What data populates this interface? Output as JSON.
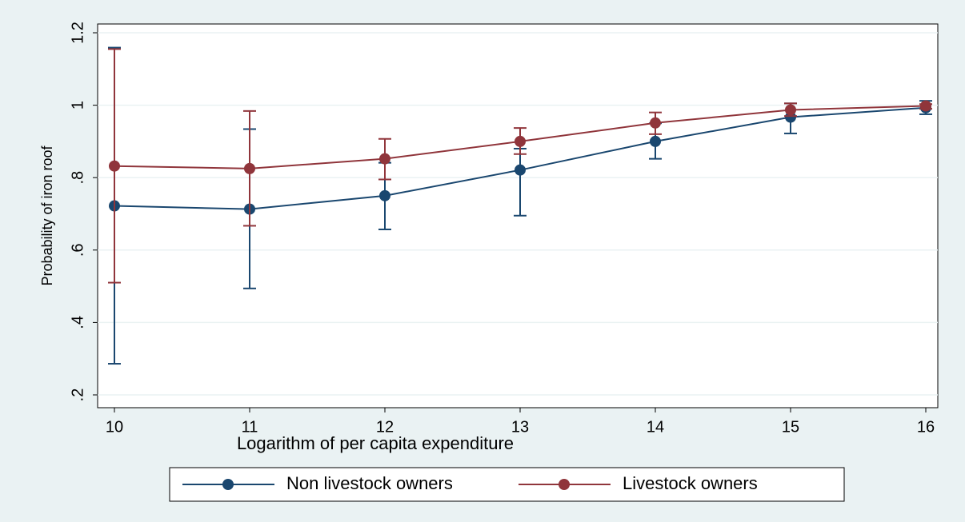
{
  "chart_data": {
    "type": "line",
    "x_label": "Logarithm of per capita expenditure",
    "y_label": "Probability of iron roof",
    "x": [
      10,
      11,
      12,
      13,
      14,
      15,
      16
    ],
    "series": [
      {
        "name": "Non livestock owners",
        "color": "#1a476f",
        "values": [
          0.722,
          0.713,
          0.75,
          0.821,
          0.9,
          0.967,
          0.993
        ],
        "lower": [
          0.286,
          0.494,
          0.657,
          0.695,
          0.852,
          0.922,
          0.975
        ],
        "upper": [
          1.159,
          0.934,
          0.841,
          0.88,
          0.95,
          1.005,
          1.012
        ]
      },
      {
        "name": "Livestock owners",
        "color": "#90353b",
        "values": [
          0.832,
          0.825,
          0.852,
          0.9,
          0.951,
          0.987,
          0.998
        ],
        "lower": [
          0.51,
          0.667,
          0.795,
          0.865,
          0.92,
          0.97,
          0.99
        ],
        "upper": [
          1.155,
          0.984,
          0.907,
          0.937,
          0.98,
          1.005,
          1.003
        ]
      }
    ],
    "xlim": [
      10,
      16
    ],
    "xticks": [
      10,
      11,
      12,
      13,
      14,
      15,
      16
    ],
    "ylim": [
      0.2,
      1.2
    ],
    "yticks": [
      {
        "value": 0.2,
        "label": ".2"
      },
      {
        "value": 0.4,
        "label": ".4"
      },
      {
        "value": 0.6,
        "label": ".6"
      },
      {
        "value": 0.8,
        "label": ".8"
      },
      {
        "value": 1,
        "label": "1"
      },
      {
        "value": 1.2,
        "label": "1.2"
      }
    ],
    "grid": true
  }
}
